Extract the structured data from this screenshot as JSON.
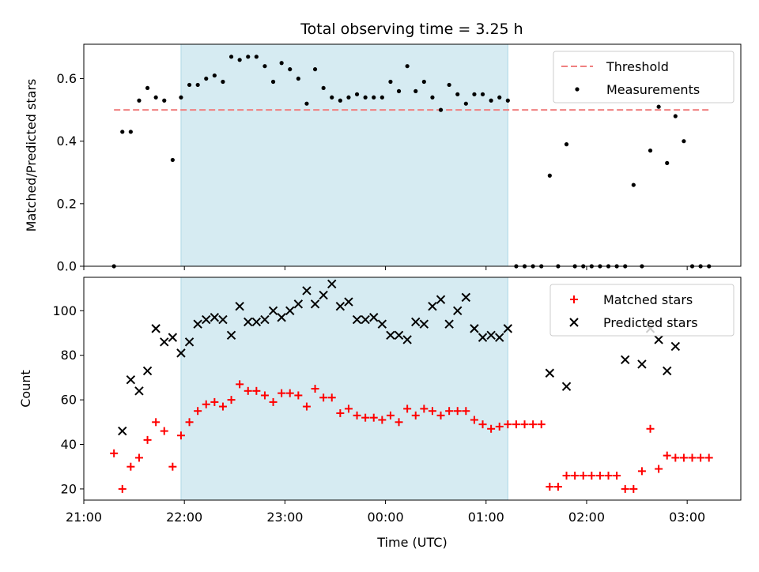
{
  "title": "Total observing time = 3.25 h",
  "colors": {
    "threshold": "#f08080",
    "measurements": "#000000",
    "matched": "#ff0000",
    "predicted": "#000000",
    "span": "#add8e6"
  },
  "chart_data": [
    {
      "type": "scatter",
      "title": "Total observing time = 3.25 h",
      "ylabel": "Matched/Predicted stars",
      "xlabel": "",
      "xlim": [
        "21:00",
        "03:32"
      ],
      "ylim": [
        0,
        0.71
      ],
      "yticks": [
        "0.0",
        "0.2",
        "0.4",
        "0.6"
      ],
      "ytick_values": [
        0,
        0.2,
        0.4,
        0.6
      ],
      "shaded_span": [
        "21:58",
        "01:13"
      ],
      "legend": {
        "placement": "top-right",
        "entries": [
          "Threshold",
          "Measurements"
        ]
      },
      "threshold": {
        "name": "Threshold",
        "y": 0.5,
        "x": [
          "21:18",
          "03:14"
        ]
      },
      "series": [
        {
          "name": "Measurements",
          "marker": "dot",
          "x": [
            "21:18",
            "21:23",
            "21:28",
            "21:33",
            "21:38",
            "21:43",
            "21:48",
            "21:53",
            "21:58",
            "22:03",
            "22:08",
            "22:13",
            "22:18",
            "22:23",
            "22:28",
            "22:33",
            "22:38",
            "22:43",
            "22:48",
            "22:53",
            "22:58",
            "23:03",
            "23:08",
            "23:13",
            "23:18",
            "23:23",
            "23:28",
            "23:33",
            "23:38",
            "23:43",
            "23:48",
            "23:53",
            "23:58",
            "00:03",
            "00:08",
            "00:13",
            "00:18",
            "00:23",
            "00:28",
            "00:33",
            "00:38",
            "00:43",
            "00:48",
            "00:53",
            "00:58",
            "01:03",
            "01:08",
            "01:13",
            "01:18",
            "01:23",
            "01:28",
            "01:33",
            "01:38",
            "01:43",
            "01:48",
            "01:53",
            "01:58",
            "02:03",
            "02:08",
            "02:13",
            "02:18",
            "02:23",
            "02:28",
            "02:33",
            "02:38",
            "02:43",
            "02:48",
            "02:53",
            "02:58",
            "03:03",
            "03:08",
            "03:13"
          ],
          "y": [
            0.0,
            0.43,
            0.43,
            0.53,
            0.57,
            0.54,
            0.53,
            0.34,
            0.54,
            0.58,
            0.58,
            0.6,
            0.61,
            0.59,
            0.67,
            0.66,
            0.67,
            0.67,
            0.64,
            0.59,
            0.65,
            0.63,
            0.6,
            0.52,
            0.63,
            0.57,
            0.54,
            0.53,
            0.54,
            0.55,
            0.54,
            0.54,
            0.54,
            0.59,
            0.56,
            0.64,
            0.56,
            0.59,
            0.54,
            0.5,
            0.58,
            0.55,
            0.52,
            0.55,
            0.55,
            0.53,
            0.54,
            0.53,
            0.0,
            0.0,
            0.0,
            0.0,
            0.29,
            0.0,
            0.39,
            0.0,
            0.0,
            0.0,
            0.0,
            0.0,
            0.0,
            0.0,
            0.26,
            0.0,
            0.37,
            0.51,
            0.33,
            0.48,
            0.4,
            0.0,
            0.0,
            0.0
          ]
        }
      ]
    },
    {
      "type": "scatter",
      "title": "",
      "ylabel": "Count",
      "xlabel": "Time (UTC)",
      "xlim": [
        "21:00",
        "03:32"
      ],
      "ylim": [
        15,
        115
      ],
      "xticks": [
        "21:00",
        "22:00",
        "23:00",
        "00:00",
        "01:00",
        "02:00",
        "03:00"
      ],
      "yticks": [
        "20",
        "40",
        "60",
        "80",
        "100"
      ],
      "ytick_values": [
        20,
        40,
        60,
        80,
        100
      ],
      "shaded_span": [
        "21:58",
        "01:13"
      ],
      "legend": {
        "placement": "top-right",
        "entries": [
          "Matched stars",
          "Predicted stars"
        ]
      },
      "series": [
        {
          "name": "Matched stars",
          "marker": "plus",
          "x": [
            "21:18",
            "21:23",
            "21:28",
            "21:33",
            "21:38",
            "21:43",
            "21:48",
            "21:53",
            "21:58",
            "22:03",
            "22:08",
            "22:13",
            "22:18",
            "22:23",
            "22:28",
            "22:33",
            "22:38",
            "22:43",
            "22:48",
            "22:53",
            "22:58",
            "23:03",
            "23:08",
            "23:13",
            "23:18",
            "23:23",
            "23:28",
            "23:33",
            "23:38",
            "23:43",
            "23:48",
            "23:53",
            "23:58",
            "00:03",
            "00:08",
            "00:13",
            "00:18",
            "00:23",
            "00:28",
            "00:33",
            "00:38",
            "00:43",
            "00:48",
            "00:53",
            "00:58",
            "01:03",
            "01:08",
            "01:13",
            "01:18",
            "01:23",
            "01:28",
            "01:33",
            "01:38",
            "01:43",
            "01:48",
            "01:53",
            "01:58",
            "02:03",
            "02:08",
            "02:13",
            "02:18",
            "02:23",
            "02:28",
            "02:33",
            "02:38",
            "02:43",
            "02:48",
            "02:53",
            "02:58",
            "03:03",
            "03:08",
            "03:13"
          ],
          "y": [
            36,
            20,
            30,
            34,
            42,
            50,
            46,
            30,
            44,
            50,
            55,
            58,
            59,
            57,
            60,
            67,
            64,
            64,
            62,
            59,
            63,
            63,
            62,
            57,
            65,
            61,
            61,
            54,
            56,
            53,
            52,
            52,
            51,
            53,
            50,
            56,
            53,
            56,
            55,
            53,
            55,
            55,
            55,
            51,
            49,
            47,
            48,
            49,
            49,
            49,
            49,
            49,
            21,
            21,
            26,
            26,
            26,
            26,
            26,
            26,
            26,
            20,
            20,
            28,
            47,
            29,
            35,
            34,
            34,
            34,
            34,
            34
          ]
        },
        {
          "name": "Predicted stars",
          "marker": "x",
          "x": [
            "21:23",
            "21:28",
            "21:33",
            "21:38",
            "21:43",
            "21:48",
            "21:53",
            "21:58",
            "22:03",
            "22:08",
            "22:13",
            "22:18",
            "22:23",
            "22:28",
            "22:33",
            "22:38",
            "22:43",
            "22:48",
            "22:53",
            "22:58",
            "23:03",
            "23:08",
            "23:13",
            "23:18",
            "23:23",
            "23:28",
            "23:33",
            "23:38",
            "23:43",
            "23:48",
            "23:53",
            "23:58",
            "00:03",
            "00:08",
            "00:13",
            "00:18",
            "00:23",
            "00:28",
            "00:33",
            "00:38",
            "00:43",
            "00:48",
            "00:53",
            "00:58",
            "01:03",
            "01:08",
            "01:13",
            "01:38",
            "01:48",
            "02:23",
            "02:33",
            "02:38",
            "02:43",
            "02:48",
            "02:53"
          ],
          "y": [
            46,
            69,
            64,
            73,
            92,
            86,
            88,
            81,
            86,
            94,
            96,
            97,
            96,
            89,
            102,
            95,
            95,
            96,
            100,
            97,
            100,
            103,
            109,
            103,
            107,
            112,
            102,
            104,
            96,
            96,
            97,
            94,
            89,
            89,
            87,
            95,
            94,
            102,
            105,
            94,
            100,
            106,
            92,
            88,
            89,
            88,
            92,
            72,
            66,
            78,
            76,
            92,
            87,
            73,
            84
          ]
        }
      ]
    }
  ]
}
